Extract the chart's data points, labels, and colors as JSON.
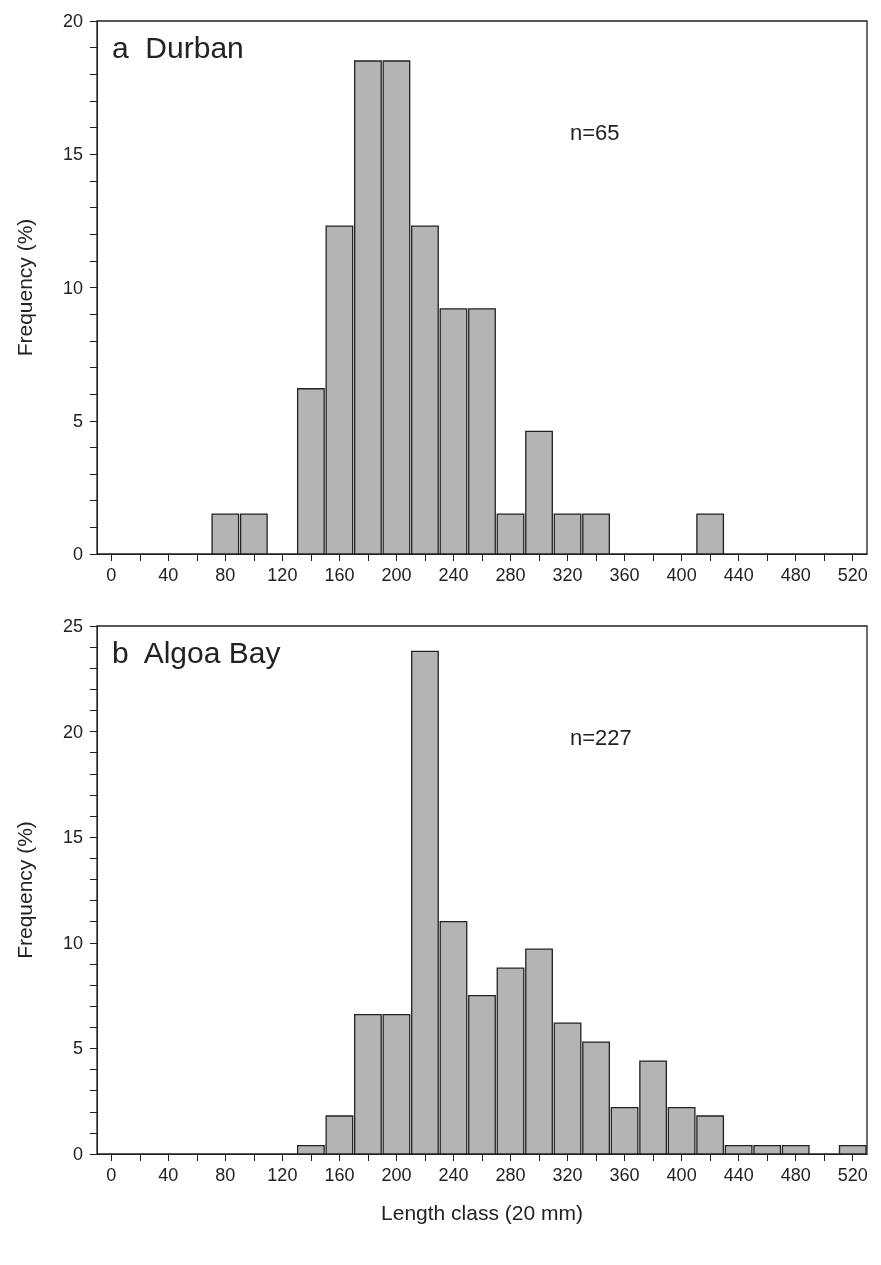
{
  "chart_data": [
    {
      "type": "histogram",
      "title": "a  Durban",
      "ylabel": "Frequency (%)",
      "annotations": [
        "n=65"
      ],
      "color": "#b4b4b4",
      "bins": [
        -10,
        10,
        30,
        50,
        70,
        90,
        110,
        130,
        150,
        170,
        190,
        210,
        230,
        250,
        270,
        290,
        310,
        330,
        350,
        370,
        390,
        410,
        430,
        450,
        470,
        490,
        510,
        530
      ],
      "values": [
        0,
        0,
        0,
        0,
        1.5,
        1.5,
        0,
        6.2,
        12.3,
        18.5,
        18.5,
        12.3,
        9.2,
        9.2,
        1.5,
        4.6,
        1.5,
        1.5,
        0,
        0,
        0,
        1.5,
        0,
        0,
        0,
        0,
        0
      ],
      "xlim": [
        -10,
        530
      ],
      "xticks": [
        0,
        {
          "value": 20,
          "label": null
        },
        40,
        {
          "value": 60,
          "label": null
        },
        80,
        {
          "value": 100,
          "label": null
        },
        120,
        {
          "value": 140,
          "label": null
        },
        160,
        {
          "value": 180,
          "label": null
        },
        200,
        {
          "value": 220,
          "label": null
        },
        240,
        {
          "value": 260,
          "label": null
        },
        280,
        {
          "value": 300,
          "label": null
        },
        320,
        {
          "value": 340,
          "label": null
        },
        360,
        {
          "value": 380,
          "label": null
        },
        400,
        {
          "value": 420,
          "label": null
        },
        440,
        {
          "value": 460,
          "label": null
        },
        480,
        {
          "value": 500,
          "label": null
        },
        520
      ],
      "ylim": [
        0,
        20
      ],
      "yticks": [
        0,
        {
          "value": 1,
          "label": null
        },
        {
          "value": 2,
          "label": null
        },
        {
          "value": 3,
          "label": null
        },
        {
          "value": 4,
          "label": null
        },
        5,
        {
          "value": 6,
          "label": null
        },
        {
          "value": 7,
          "label": null
        },
        {
          "value": 8,
          "label": null
        },
        {
          "value": 9,
          "label": null
        },
        10,
        {
          "value": 11,
          "label": null
        },
        {
          "value": 12,
          "label": null
        },
        {
          "value": 13,
          "label": null
        },
        {
          "value": 14,
          "label": null
        },
        15,
        {
          "value": 16,
          "label": null
        },
        {
          "value": 17,
          "label": null
        },
        {
          "value": 18,
          "label": null
        },
        {
          "value": 19,
          "label": null
        },
        20
      ]
    },
    {
      "type": "histogram",
      "title": "b  Algoa Bay",
      "ylabel": "Frequency (%)",
      "xlabel": "Length class (20 mm)",
      "annotations": [
        "n=227"
      ],
      "color": "#b4b4b4",
      "bins": [
        -10,
        10,
        30,
        50,
        70,
        90,
        110,
        130,
        150,
        170,
        190,
        210,
        230,
        250,
        270,
        290,
        310,
        330,
        350,
        370,
        390,
        410,
        430,
        450,
        470,
        490,
        510,
        530
      ],
      "values": [
        0,
        0,
        0,
        0,
        0,
        0,
        0,
        0.4,
        1.8,
        6.6,
        6.6,
        23.8,
        11.0,
        7.5,
        8.8,
        9.7,
        6.2,
        5.3,
        2.2,
        4.4,
        2.2,
        1.8,
        0.4,
        0.4,
        0.4,
        0,
        0.4
      ],
      "xlim": [
        -10,
        530
      ],
      "xticks": [
        0,
        {
          "value": 20,
          "label": null
        },
        40,
        {
          "value": 60,
          "label": null
        },
        80,
        {
          "value": 100,
          "label": null
        },
        120,
        {
          "value": 140,
          "label": null
        },
        160,
        {
          "value": 180,
          "label": null
        },
        200,
        {
          "value": 220,
          "label": null
        },
        240,
        {
          "value": 260,
          "label": null
        },
        280,
        {
          "value": 300,
          "label": null
        },
        320,
        {
          "value": 340,
          "label": null
        },
        360,
        {
          "value": 380,
          "label": null
        },
        400,
        {
          "value": 420,
          "label": null
        },
        440,
        {
          "value": 460,
          "label": null
        },
        480,
        {
          "value": 500,
          "label": null
        },
        520
      ],
      "ylim": [
        0,
        25
      ],
      "yticks": [
        0,
        {
          "value": 1,
          "label": null
        },
        {
          "value": 2,
          "label": null
        },
        {
          "value": 3,
          "label": null
        },
        {
          "value": 4,
          "label": null
        },
        5,
        {
          "value": 6,
          "label": null
        },
        {
          "value": 7,
          "label": null
        },
        {
          "value": 8,
          "label": null
        },
        {
          "value": 9,
          "label": null
        },
        10,
        {
          "value": 11,
          "label": null
        },
        {
          "value": 12,
          "label": null
        },
        {
          "value": 13,
          "label": null
        },
        {
          "value": 14,
          "label": null
        },
        15,
        {
          "value": 16,
          "label": null
        },
        {
          "value": 17,
          "label": null
        },
        {
          "value": 18,
          "label": null
        },
        {
          "value": 19,
          "label": null
        },
        20,
        {
          "value": 21,
          "label": null
        },
        {
          "value": 22,
          "label": null
        },
        {
          "value": 23,
          "label": null
        },
        {
          "value": 24,
          "label": null
        },
        25
      ]
    }
  ]
}
